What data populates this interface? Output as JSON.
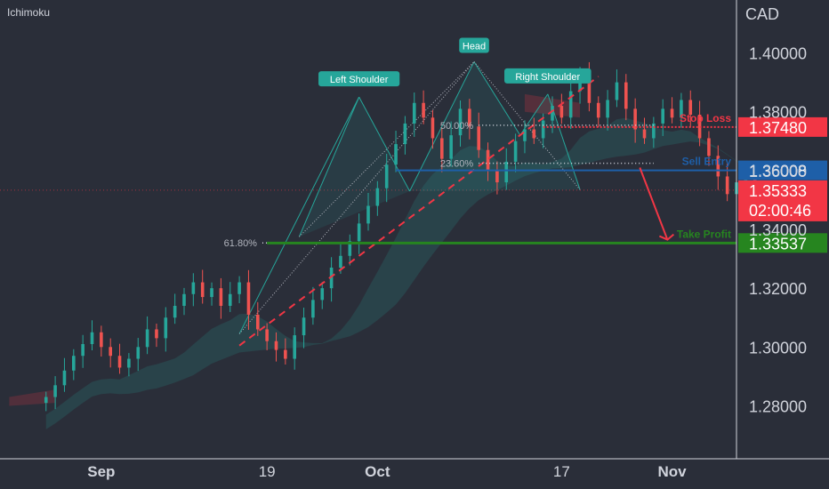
{
  "indicator": "Ichimoku",
  "currency": "CAD",
  "chart_data": {
    "type": "candlestick",
    "ylim": [
      1.262,
      1.418
    ],
    "y_ticks": [
      "1.28000",
      "1.30000",
      "1.32000",
      "1.34000",
      "1.36000",
      "1.38000",
      "1.40000"
    ],
    "y_tick_values": [
      1.28,
      1.3,
      1.32,
      1.34,
      1.36,
      1.38,
      1.4
    ],
    "x_ticks": [
      {
        "label": "Sep",
        "bold": true,
        "x": 6
      },
      {
        "label": "19",
        "bold": false,
        "x": 24
      },
      {
        "label": "Oct",
        "bold": true,
        "x": 36
      },
      {
        "label": "17",
        "bold": false,
        "x": 56
      },
      {
        "label": "Nov",
        "bold": true,
        "x": 68
      }
    ],
    "x_range": [
      -5,
      75
    ],
    "pattern": {
      "name": "Head and Shoulders",
      "labels": {
        "left_shoulder": "Left Shoulder",
        "head": "Head",
        "right_shoulder": "Right Shoulder"
      },
      "points": {
        "base": [
          21,
          1.3045
        ],
        "ls_start": [
          27.5,
          1.3375
        ],
        "left_shoulder": [
          34,
          1.385
        ],
        "ls_neck": [
          39.5,
          1.353
        ],
        "head": [
          46.5,
          1.397
        ],
        "rs_neck": [
          51.5,
          1.372
        ],
        "right_shoulder": [
          54.5,
          1.386
        ],
        "rs_end": [
          58,
          1.3535
        ]
      }
    },
    "fib_levels": [
      {
        "label": "61.80%",
        "value": 1.3354
      },
      {
        "label": "23.60%",
        "value": 1.3625
      },
      {
        "label": "50.00%",
        "value": 1.3754
      }
    ],
    "levels": [
      {
        "label": "Stop Loss",
        "value": 1.3748,
        "price": "1.37480",
        "color": "#f23645"
      },
      {
        "label": "Sell Entry",
        "value": 1.36008,
        "price": "1.36008",
        "color": "#1e5fa8"
      },
      {
        "label": "Take Profit",
        "value": 1.33537,
        "price": "1.33537",
        "color": "#26851f"
      }
    ],
    "current_price": {
      "price": "1.35333",
      "value": 1.35333,
      "countdown": "02:00:46",
      "color": "#f23645"
    },
    "close": [
      1.283,
      1.287,
      1.292,
      1.297,
      1.301,
      1.305,
      1.3,
      1.297,
      1.293,
      1.296,
      1.3,
      1.306,
      1.303,
      1.31,
      1.314,
      1.318,
      1.322,
      1.317,
      1.32,
      1.314,
      1.318,
      1.322,
      1.311,
      1.306,
      1.302,
      1.299,
      1.296,
      1.304,
      1.31,
      1.316,
      1.32,
      1.327,
      1.331,
      1.336,
      1.342,
      1.348,
      1.354,
      1.362,
      1.369,
      1.376,
      1.383,
      1.378,
      1.371,
      1.364,
      1.372,
      1.381,
      1.375,
      1.367,
      1.36,
      1.356,
      1.363,
      1.37,
      1.374,
      1.371,
      1.377,
      1.382,
      1.378,
      1.387,
      1.392,
      1.383,
      1.378,
      1.384,
      1.39,
      1.381,
      1.374,
      1.371,
      1.376,
      1.381,
      1.378,
      1.384,
      1.379,
      1.371,
      1.365,
      1.358,
      1.352,
      1.356,
      1.358,
      1.354
    ]
  }
}
